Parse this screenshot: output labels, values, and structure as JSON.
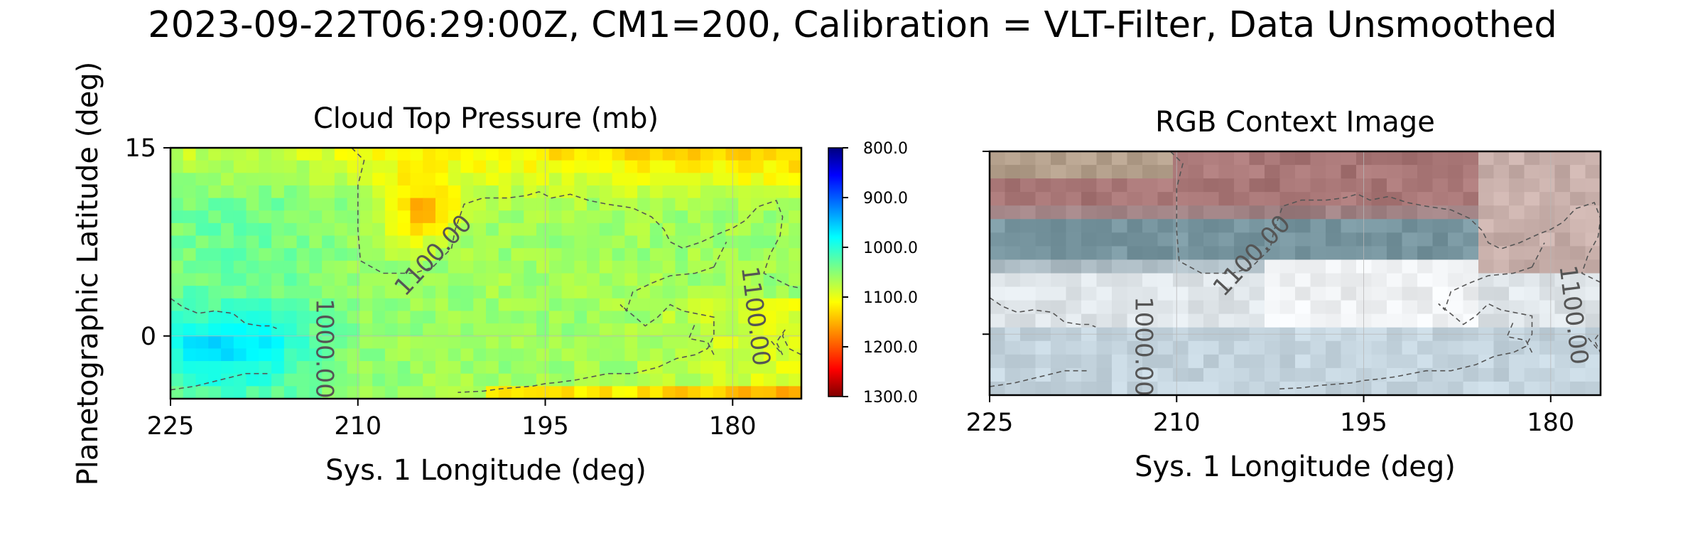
{
  "figure": {
    "suptitle": "2023-09-22T06:29:00Z, CM1=200, Calibration = VLT-Filter, Data Unsmoothed"
  },
  "chart_data": [
    {
      "type": "heatmap",
      "title": "Cloud Top Pressure (mb)",
      "xlabel": "Sys. 1 Longitude (deg)",
      "ylabel": "Planetographic Latitude (deg)",
      "xlim": [
        225,
        174.5
      ],
      "ylim": [
        -5,
        15
      ],
      "xticks": [
        225,
        210,
        195,
        180
      ],
      "yticks": [
        15,
        0
      ],
      "xtick_labels": [
        "225",
        "210",
        "195",
        "180"
      ],
      "ytick_labels": [
        "15",
        "0"
      ],
      "grid": true,
      "colorbar": {
        "cmap": "jet",
        "range": [
          800,
          1300
        ],
        "inverted": true,
        "ticks": [
          800,
          900,
          1000,
          1100,
          1200,
          1300
        ],
        "tick_labels": [
          "800.0",
          "900.0",
          "1000.0",
          "1100.0",
          "1200.0",
          "1300.0"
        ]
      },
      "contours": [
        {
          "level": 1100,
          "label": "1100.00"
        },
        {
          "level": 1000,
          "label": "1000.00"
        },
        {
          "level": 1100,
          "label": "1100.00"
        }
      ],
      "grid_size": [
        50,
        20
      ],
      "value_description": "approximate cloud top pressure in mb: ~1000 at low latitudes west, ~1100 across center, ~1200+ near 15N east"
    },
    {
      "type": "heatmap",
      "title": "RGB Context Image",
      "xlabel": "Sys. 1 Longitude (deg)",
      "xlim": [
        225,
        176
      ],
      "ylim": [
        -5,
        15
      ],
      "xticks": [
        225,
        210,
        195,
        180
      ],
      "xtick_labels": [
        "225",
        "210",
        "195",
        "180"
      ],
      "grid": true,
      "contours": [
        {
          "level": 1100,
          "label": "1100.00"
        },
        {
          "level": 1000,
          "label": "1000.00"
        },
        {
          "level": 1100,
          "label": "1100.00"
        }
      ]
    }
  ]
}
